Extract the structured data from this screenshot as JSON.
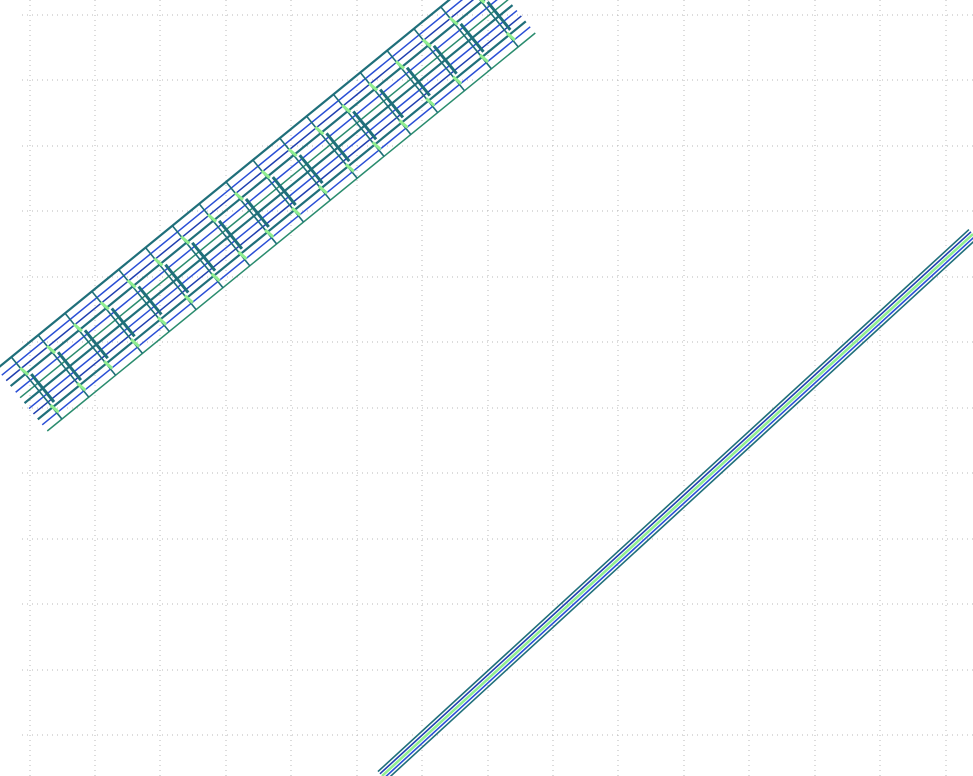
{
  "view": {
    "kind": "map-linework-viewer",
    "background": "#ffffff",
    "grid": {
      "visible": true,
      "style": "dotted",
      "color": "#b8b8b8"
    }
  },
  "palette": {
    "dark_blue": "#1f3fb0",
    "blue": "#2a4fd6",
    "teal": "#1f6f7a",
    "green_teal": "#2a8c6e",
    "light_green": "#90ee90"
  },
  "features": [
    {
      "name": "upper-track-corridor",
      "colors": [
        "#1f3fb0",
        "#1f6f7a",
        "#90ee90"
      ]
    },
    {
      "name": "lower-track-corridor",
      "colors": [
        "#1f3fb0",
        "#1f6f7a",
        "#90ee90"
      ]
    }
  ]
}
